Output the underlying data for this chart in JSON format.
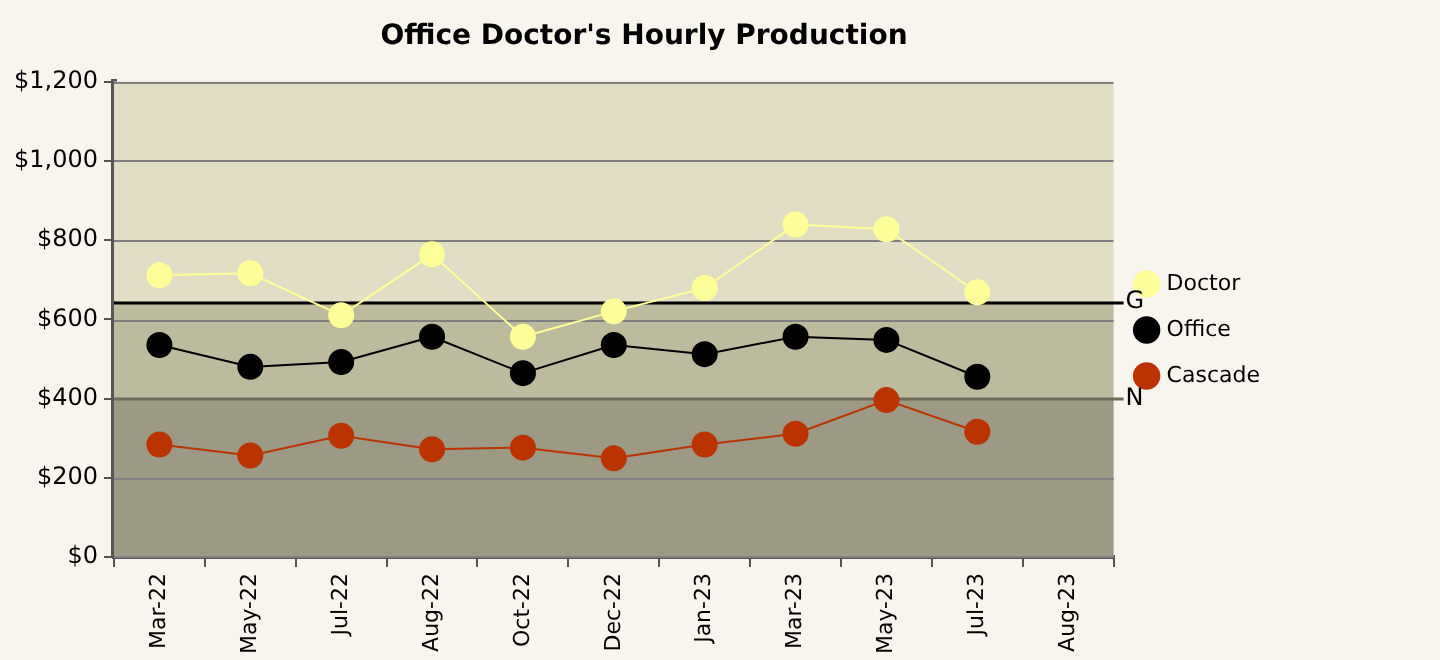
{
  "chart_data": {
    "type": "line",
    "title": "Office Doctor's Hourly Production",
    "categories": [
      "Mar-22",
      "May-22",
      "Jul-22",
      "Aug-22",
      "Oct-22",
      "Dec-22",
      "Jan-23",
      "Mar-23",
      "May-23",
      "Jul-23",
      "Aug-23"
    ],
    "series": [
      {
        "name": "Doctor",
        "color": "#ffff99",
        "values": [
          711,
          716,
          610,
          764,
          556,
          620,
          679,
          839,
          827,
          668,
          null
        ]
      },
      {
        "name": "Office",
        "color": "#000000",
        "values": [
          535,
          480,
          492,
          556,
          464,
          535,
          512,
          556,
          548,
          455,
          null
        ]
      },
      {
        "name": "Cascade",
        "color": "#bb3300",
        "values": [
          284,
          256,
          306,
          272,
          276,
          249,
          284,
          311,
          396,
          316,
          null
        ]
      }
    ],
    "ylim": [
      0,
      1200
    ],
    "yticks": [
      {
        "value": 0,
        "label": "$0"
      },
      {
        "value": 200,
        "label": "$200"
      },
      {
        "value": 400,
        "label": "$400"
      },
      {
        "value": 600,
        "label": "$600"
      },
      {
        "value": 800,
        "label": "$800"
      },
      {
        "value": 1000,
        "label": "$1,000"
      },
      {
        "value": 1200,
        "label": "$1,200"
      }
    ],
    "bands": [
      {
        "axis": "y",
        "from": 0,
        "to": 400,
        "color": "#9c9a84"
      },
      {
        "axis": "y",
        "from": 400,
        "to": 645,
        "color": "#bcbb9e"
      },
      {
        "axis": "y",
        "from": 645,
        "to": 1200,
        "color": "#e2dec6"
      }
    ],
    "ref_lines": [
      {
        "axis": "y",
        "value": 645,
        "label": "G",
        "color": "#000000"
      },
      {
        "axis": "y",
        "value": 400,
        "label": "N",
        "color": "#6e6c5c"
      }
    ],
    "grid": "y",
    "legend": "right",
    "marker": "circle",
    "line_style": "solid"
  }
}
